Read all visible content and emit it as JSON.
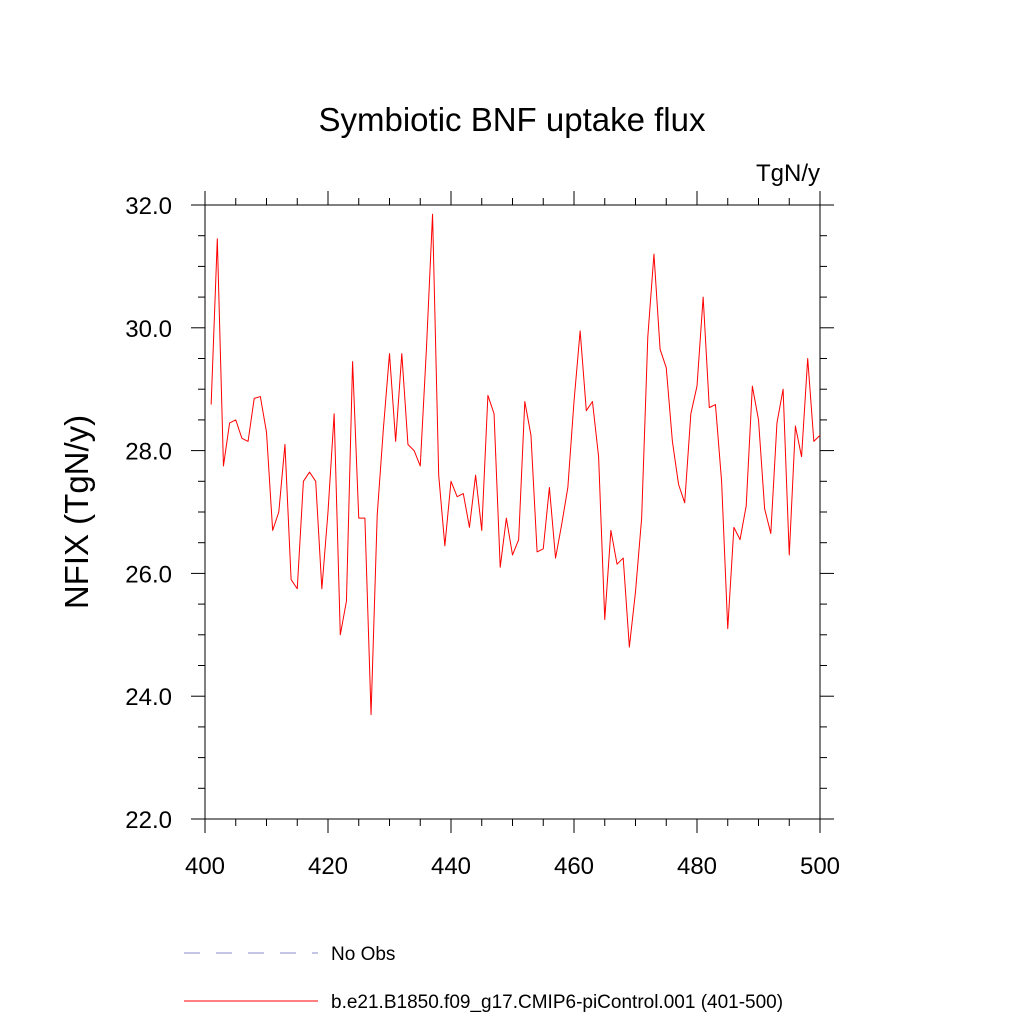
{
  "chart_data": {
    "type": "line",
    "title": "Symbiotic BNF uptake flux",
    "units": "TgN/y",
    "xlabel": "",
    "ylabel": "NFIX  (TgN/y)",
    "xlim": [
      400,
      500
    ],
    "ylim": [
      22.0,
      32.0
    ],
    "x_ticks": [
      "400",
      "420",
      "440",
      "460",
      "480",
      "500"
    ],
    "y_ticks": [
      "22.0",
      "24.0",
      "26.0",
      "28.0",
      "30.0",
      "32.0"
    ],
    "grid": false,
    "series": [
      {
        "name": "b.e21.B1850.f09_g17.CMIP6-piControl.001 (401-500)",
        "color": "#ff0000",
        "style": "solid",
        "x": [
          401,
          402,
          403,
          404,
          405,
          406,
          407,
          408,
          409,
          410,
          411,
          412,
          413,
          414,
          415,
          416,
          417,
          418,
          419,
          420,
          421,
          422,
          423,
          424,
          425,
          426,
          427,
          428,
          429,
          430,
          431,
          432,
          433,
          434,
          435,
          436,
          437,
          438,
          439,
          440,
          441,
          442,
          443,
          444,
          445,
          446,
          447,
          448,
          449,
          450,
          451,
          452,
          453,
          454,
          455,
          456,
          457,
          458,
          459,
          460,
          461,
          462,
          463,
          464,
          465,
          466,
          467,
          468,
          469,
          470,
          471,
          472,
          473,
          474,
          475,
          476,
          477,
          478,
          479,
          480,
          481,
          482,
          483,
          484,
          485,
          486,
          487,
          488,
          489,
          490,
          491,
          492,
          493,
          494,
          495,
          496,
          497,
          498,
          499,
          500
        ],
        "values": [
          28.75,
          31.45,
          27.75,
          28.45,
          28.5,
          28.2,
          28.15,
          28.85,
          28.88,
          28.3,
          26.7,
          27.0,
          28.1,
          25.9,
          25.75,
          27.5,
          27.65,
          27.5,
          25.75,
          27.0,
          28.6,
          25.0,
          25.55,
          29.45,
          26.9,
          26.9,
          23.7,
          26.95,
          28.35,
          29.58,
          28.15,
          29.58,
          28.1,
          28.0,
          27.75,
          29.65,
          31.85,
          27.6,
          26.45,
          27.5,
          27.25,
          27.3,
          26.75,
          27.6,
          26.7,
          28.9,
          28.6,
          26.1,
          26.9,
          26.3,
          26.55,
          28.8,
          28.25,
          26.35,
          26.4,
          27.4,
          26.25,
          26.8,
          27.4,
          28.8,
          29.95,
          28.65,
          28.8,
          27.9,
          25.25,
          26.7,
          26.15,
          26.25,
          24.8,
          25.7,
          26.9,
          29.85,
          31.2,
          29.65,
          29.35,
          28.15,
          27.45,
          27.15,
          28.6,
          29.05,
          30.5,
          28.7,
          28.75,
          27.5,
          25.1,
          26.75,
          26.55,
          27.1,
          29.05,
          28.5,
          27.05,
          26.65,
          28.45,
          29.0,
          26.3,
          28.4,
          27.9,
          29.5,
          28.15,
          28.25
        ]
      }
    ],
    "legend": {
      "placement": "bottom",
      "entries": [
        {
          "label": "No Obs",
          "color": "#8888cc",
          "style": "dashed"
        },
        {
          "label": "b.e21.B1850.f09_g17.CMIP6-piControl.001 (401-500)",
          "color": "#ff0000",
          "style": "solid"
        }
      ]
    }
  }
}
